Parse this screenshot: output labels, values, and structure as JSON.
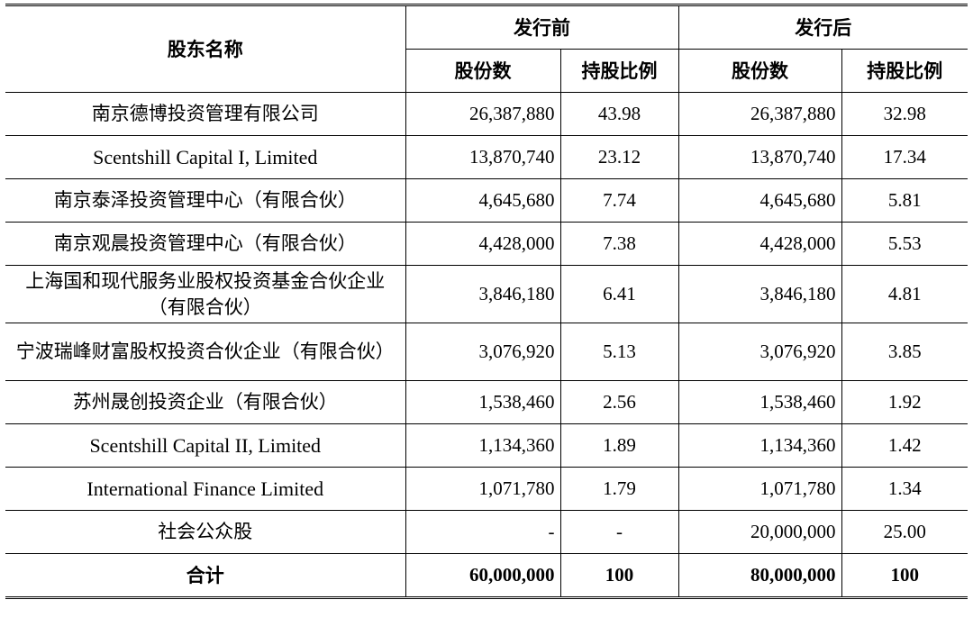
{
  "header": {
    "name_col": "股东名称",
    "before_group": "发行前",
    "after_group": "发行后",
    "shares_col": "股份数",
    "ratio_col": "持股比例"
  },
  "rows": [
    {
      "name": "南京德博投资管理有限公司",
      "shares_before": "26,387,880",
      "ratio_before": "43.98",
      "shares_after": "26,387,880",
      "ratio_after": "32.98"
    },
    {
      "name": "Scentshill Capital I, Limited",
      "shares_before": "13,870,740",
      "ratio_before": "23.12",
      "shares_after": "13,870,740",
      "ratio_after": "17.34"
    },
    {
      "name": "南京泰泽投资管理中心（有限合伙）",
      "shares_before": "4,645,680",
      "ratio_before": "7.74",
      "shares_after": "4,645,680",
      "ratio_after": "5.81"
    },
    {
      "name": "南京观晨投资管理中心（有限合伙）",
      "shares_before": "4,428,000",
      "ratio_before": "7.38",
      "shares_after": "4,428,000",
      "ratio_after": "5.53"
    },
    {
      "name": "上海国和现代服务业股权投资基金合伙企业（有限合伙）",
      "shares_before": "3,846,180",
      "ratio_before": "6.41",
      "shares_after": "3,846,180",
      "ratio_after": "4.81"
    },
    {
      "name": "宁波瑞峰财富股权投资合伙企业（有限合伙）",
      "shares_before": "3,076,920",
      "ratio_before": "5.13",
      "shares_after": "3,076,920",
      "ratio_after": "3.85"
    },
    {
      "name": "苏州晟创投资企业（有限合伙）",
      "shares_before": "1,538,460",
      "ratio_before": "2.56",
      "shares_after": "1,538,460",
      "ratio_after": "1.92"
    },
    {
      "name": "Scentshill Capital II, Limited",
      "shares_before": "1,134,360",
      "ratio_before": "1.89",
      "shares_after": "1,134,360",
      "ratio_after": "1.42"
    },
    {
      "name": "International Finance Limited",
      "shares_before": "1,071,780",
      "ratio_before": "1.79",
      "shares_after": "1,071,780",
      "ratio_after": "1.34"
    },
    {
      "name": "社会公众股",
      "shares_before": "-",
      "ratio_before": "-",
      "shares_after": "20,000,000",
      "ratio_after": "25.00"
    }
  ],
  "total": {
    "name": "合计",
    "shares_before": "60,000,000",
    "ratio_before": "100",
    "shares_after": "80,000,000",
    "ratio_after": "100"
  }
}
